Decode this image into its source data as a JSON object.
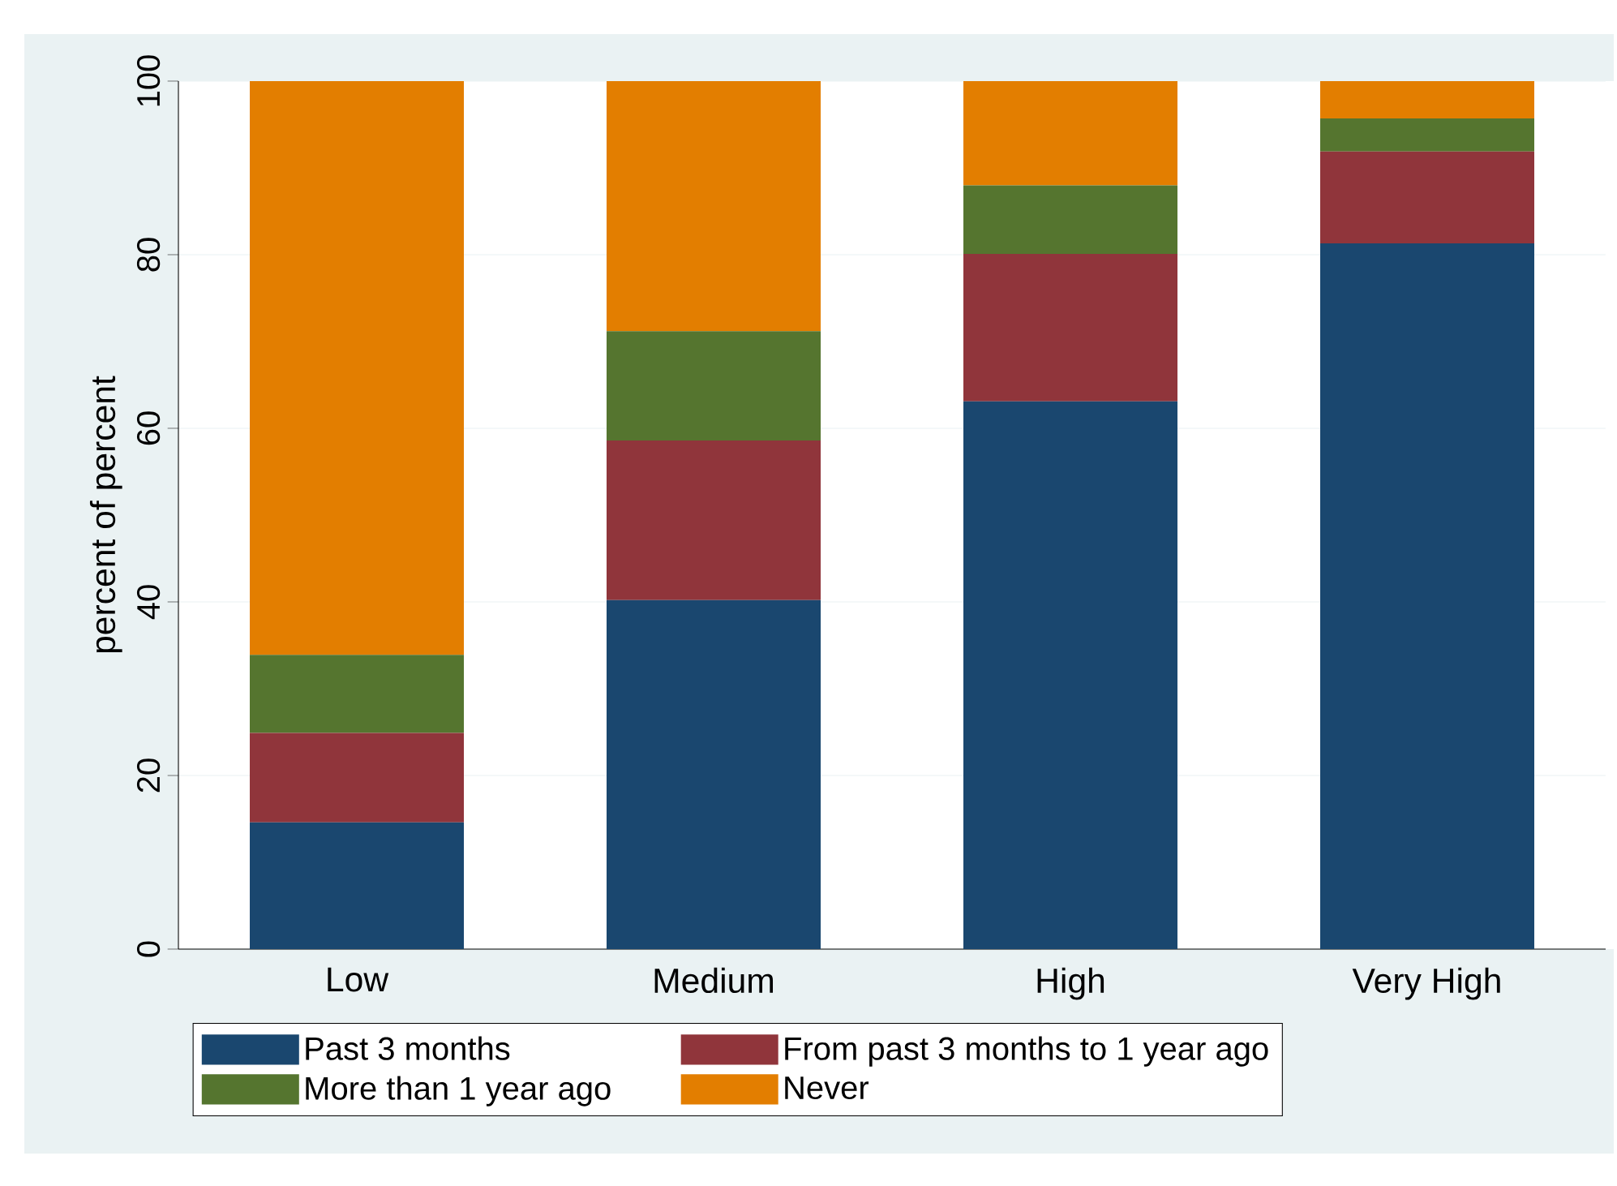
{
  "chart_data": {
    "type": "bar",
    "stacked": true,
    "ylabel": "percent of percent",
    "categories": [
      "Low",
      "Medium",
      "High",
      "Very High"
    ],
    "series": [
      {
        "name": "Past 3 months",
        "color": "#1a476f",
        "values": [
          14.6,
          40.2,
          63.1,
          81.3
        ]
      },
      {
        "name": "From past 3 months to 1 year ago",
        "color": "#90353b",
        "values": [
          10.3,
          18.4,
          17.0,
          10.6
        ]
      },
      {
        "name": "More than 1 year ago",
        "color": "#55752f",
        "values": [
          9.0,
          12.6,
          7.9,
          3.8
        ]
      },
      {
        "name": "Never",
        "color": "#e37e00",
        "values": [
          66.1,
          28.8,
          12.0,
          4.3
        ]
      }
    ],
    "ylim": [
      0,
      100
    ],
    "yticks": [
      0,
      20,
      40,
      60,
      80,
      100
    ],
    "grid": "y",
    "legend": "bottom"
  }
}
